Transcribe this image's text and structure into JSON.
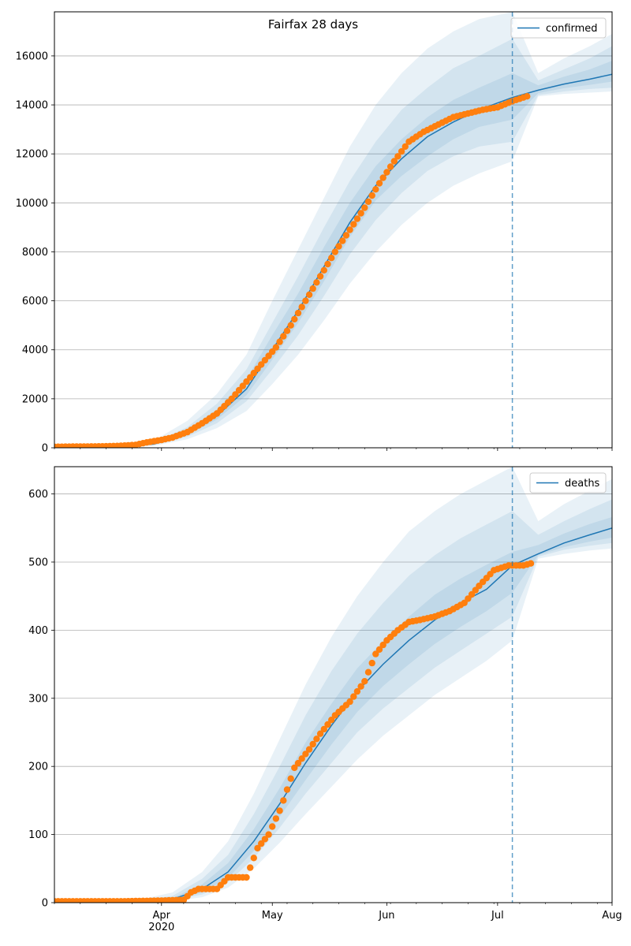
{
  "title": "Fairfax 28 days",
  "chart_data": [
    {
      "type": "line",
      "series_name": "confirmed",
      "xlim": [
        "2020-03-03",
        "2020-08-01"
      ],
      "ylim": [
        0,
        17800
      ],
      "yticks": [
        0,
        2000,
        4000,
        6000,
        8000,
        10000,
        12000,
        14000,
        16000
      ],
      "ytick_labels": [
        "0",
        "2000",
        "4000",
        "6000",
        "8000",
        "10000",
        "12000",
        "14000",
        "16000"
      ],
      "grid": "horizontal",
      "legend": {
        "position": "top-right",
        "entries": [
          "confirmed"
        ]
      },
      "forecast_start": "2020-07-05",
      "colors": {
        "line": "#1f77b4",
        "points": "#ff7f0e",
        "band": "#1f77b4"
      },
      "observed": {
        "x": [
          "2020-03-03",
          "2020-03-10",
          "2020-03-17",
          "2020-03-21",
          "2020-03-25",
          "2020-03-28",
          "2020-04-01",
          "2020-04-04",
          "2020-04-08",
          "2020-04-12",
          "2020-04-16",
          "2020-04-20",
          "2020-04-24",
          "2020-04-28",
          "2020-05-02",
          "2020-05-06",
          "2020-05-10",
          "2020-05-14",
          "2020-05-18",
          "2020-05-22",
          "2020-05-26",
          "2020-05-30",
          "2020-06-03",
          "2020-06-07",
          "2020-06-11",
          "2020-06-15",
          "2020-06-19",
          "2020-06-23",
          "2020-06-27",
          "2020-07-01",
          "2020-07-05",
          "2020-07-09"
        ],
        "y": [
          40,
          50,
          60,
          80,
          120,
          220,
          320,
          420,
          640,
          1000,
          1400,
          2000,
          2700,
          3400,
          4100,
          5000,
          6000,
          7000,
          8000,
          8900,
          9800,
          10800,
          11700,
          12500,
          12900,
          13200,
          13500,
          13650,
          13800,
          13900,
          14150,
          14350
        ]
      },
      "forecast": {
        "x": [
          "2020-03-03",
          "2020-03-20",
          "2020-03-30",
          "2020-04-08",
          "2020-04-16",
          "2020-04-24",
          "2020-05-01",
          "2020-05-08",
          "2020-05-15",
          "2020-05-22",
          "2020-05-29",
          "2020-06-05",
          "2020-06-12",
          "2020-06-19",
          "2020-06-26",
          "2020-07-05",
          "2020-07-12",
          "2020-07-19",
          "2020-07-26",
          "2020-08-01"
        ],
        "y": [
          0,
          40,
          150,
          600,
          1300,
          2400,
          4000,
          5600,
          7400,
          9200,
          10700,
          11800,
          12700,
          13300,
          13800,
          14300,
          14600,
          14850,
          15050,
          15250
        ],
        "bands": [
          {
            "lower": [
              0,
              20,
              80,
              350,
              800,
              1500,
              2600,
              3800,
              5200,
              6700,
              8000,
              9100,
              10000,
              10700,
              11200,
              11700,
              14350,
              14450,
              14500,
              14550
            ],
            "upper": [
              0,
              80,
              300,
              1100,
              2200,
              3800,
              6000,
              8100,
              10200,
              12300,
              14000,
              15300,
              16300,
              17000,
              17500,
              17800,
              15300,
              15900,
              16400,
              16900
            ]
          },
          {
            "lower": [
              0,
              30,
              110,
              450,
              1000,
              1900,
              3200,
              4600,
              6200,
              7900,
              9300,
              10400,
              11300,
              11900,
              12300,
              12500,
              14400,
              14550,
              14650,
              14700
            ],
            "upper": [
              0,
              60,
              220,
              850,
              1800,
              3200,
              5100,
              7000,
              9000,
              10900,
              12500,
              13800,
              14700,
              15500,
              16000,
              16700,
              15000,
              15450,
              15900,
              16400
            ]
          },
          {
            "lower": [
              0,
              35,
              130,
              520,
              1150,
              2150,
              3600,
              5100,
              6800,
              8600,
              10100,
              11100,
              11900,
              12600,
              13100,
              13400,
              14480,
              14680,
              14820,
              14950
            ],
            "upper": [
              0,
              50,
              180,
              720,
              1550,
              2800,
              4600,
              6300,
              8200,
              10000,
              11500,
              12600,
              13500,
              14200,
              14700,
              15300,
              14800,
              15150,
              15450,
              15800
            ]
          }
        ]
      }
    },
    {
      "type": "line",
      "series_name": "deaths",
      "xlim": [
        "2020-03-03",
        "2020-08-01"
      ],
      "ylim": [
        0,
        640
      ],
      "yticks": [
        0,
        100,
        200,
        300,
        400,
        500,
        600
      ],
      "ytick_labels": [
        "0",
        "100",
        "200",
        "300",
        "400",
        "500",
        "600"
      ],
      "xtick_labels": [
        "Apr\n2020",
        "May",
        "Jun",
        "Jul",
        "Aug"
      ],
      "xtick_dates": [
        "2020-04-01",
        "2020-05-01",
        "2020-06-01",
        "2020-07-01",
        "2020-08-01"
      ],
      "grid": "horizontal",
      "legend": {
        "position": "top-right",
        "entries": [
          "deaths"
        ]
      },
      "forecast_start": "2020-07-05",
      "colors": {
        "line": "#1f77b4",
        "points": "#ff7f0e",
        "band": "#1f77b4"
      },
      "observed": {
        "x": [
          "2020-03-03",
          "2020-03-12",
          "2020-03-22",
          "2020-04-01",
          "2020-04-07",
          "2020-04-09",
          "2020-04-11",
          "2020-04-16",
          "2020-04-19",
          "2020-04-24",
          "2020-04-27",
          "2020-04-30",
          "2020-05-03",
          "2020-05-04",
          "2020-05-07",
          "2020-05-11",
          "2020-05-14",
          "2020-05-18",
          "2020-05-22",
          "2020-05-26",
          "2020-05-29",
          "2020-06-01",
          "2020-06-04",
          "2020-06-07",
          "2020-06-10",
          "2020-06-14",
          "2020-06-18",
          "2020-06-22",
          "2020-06-26",
          "2020-06-30",
          "2020-07-04",
          "2020-07-08",
          "2020-07-10"
        ],
        "y": [
          2,
          2,
          2,
          3,
          4,
          15,
          20,
          20,
          37,
          37,
          80,
          100,
          135,
          150,
          198,
          225,
          248,
          275,
          295,
          325,
          365,
          385,
          400,
          412,
          415,
          420,
          428,
          440,
          465,
          488,
          495,
          495,
          498
        ]
      },
      "forecast": {
        "x": [
          "2020-03-03",
          "2020-03-25",
          "2020-04-04",
          "2020-04-12",
          "2020-04-19",
          "2020-04-26",
          "2020-05-03",
          "2020-05-10",
          "2020-05-17",
          "2020-05-24",
          "2020-05-31",
          "2020-06-07",
          "2020-06-14",
          "2020-06-21",
          "2020-06-28",
          "2020-07-05",
          "2020-07-12",
          "2020-07-19",
          "2020-07-26",
          "2020-08-01"
        ],
        "y": [
          0,
          1,
          5,
          20,
          45,
          90,
          145,
          205,
          260,
          310,
          350,
          385,
          415,
          440,
          460,
          495,
          512,
          528,
          540,
          550
        ],
        "bands": [
          {
            "lower": [
              0,
              0,
              2,
              8,
              22,
              50,
              88,
              130,
              170,
              210,
              245,
              275,
              305,
              330,
              355,
              385,
              505,
              512,
              517,
              520
            ],
            "upper": [
              0,
              3,
              15,
              45,
              90,
              160,
              240,
              320,
              390,
              450,
              500,
              545,
              575,
              600,
              620,
              640,
              560,
              585,
              605,
              622
            ]
          },
          {
            "lower": [
              0,
              0,
              3,
              12,
              30,
              65,
              110,
              160,
              205,
              250,
              285,
              315,
              345,
              370,
              395,
              420,
              508,
              518,
              524,
              528
            ],
            "upper": [
              0,
              2,
              10,
              35,
              70,
              130,
              200,
              275,
              340,
              395,
              440,
              480,
              510,
              535,
              555,
              575,
              540,
              560,
              578,
              592
            ]
          },
          {
            "lower": [
              0,
              0,
              4,
              15,
              36,
              76,
              126,
              180,
              232,
              280,
              318,
              350,
              380,
              405,
              428,
              455,
              510,
              522,
              530,
              536
            ],
            "upper": [
              0,
              1,
              7,
              27,
              58,
              108,
              168,
              235,
              292,
              344,
              384,
              420,
              452,
              476,
              496,
              515,
              525,
              542,
              556,
              566
            ]
          }
        ]
      }
    }
  ]
}
